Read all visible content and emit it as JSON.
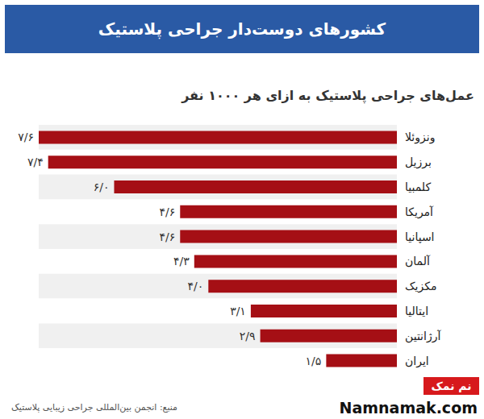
{
  "chart_data": {
    "type": "bar",
    "orientation": "horizontal",
    "title": "کشورهای دوست‌دار جراحی پلاستیک",
    "subtitle": "عمل‌های جراحی پلاستیک به ازای هر ۱۰۰۰ نفر",
    "categories": [
      "ونزوئلا",
      "برزیل",
      "کلمبیا",
      "آمریکا",
      "اسپانیا",
      "آلمان",
      "مکزیک",
      "ایتالیا",
      "آرژانتین",
      "ایران"
    ],
    "values": [
      7.6,
      7.4,
      6.0,
      4.6,
      4.6,
      4.3,
      4.0,
      3.1,
      2.9,
      1.5
    ],
    "value_labels": [
      "۷/۶",
      "۷/۴",
      "۶/۰",
      "۴/۶",
      "۴/۶",
      "۴/۳",
      "۴/۰",
      "۳/۱",
      "۲/۹",
      "۱/۵"
    ],
    "color": "#a50f15",
    "xlim": [
      0,
      7.6
    ],
    "tick_labels": false,
    "data_labels": true,
    "grid": false,
    "annotations": [
      "منبع: انجمن بین‌المللی جراحی زیبایی پلاستیک",
      "نم نمک",
      "Namnamak.com"
    ]
  }
}
